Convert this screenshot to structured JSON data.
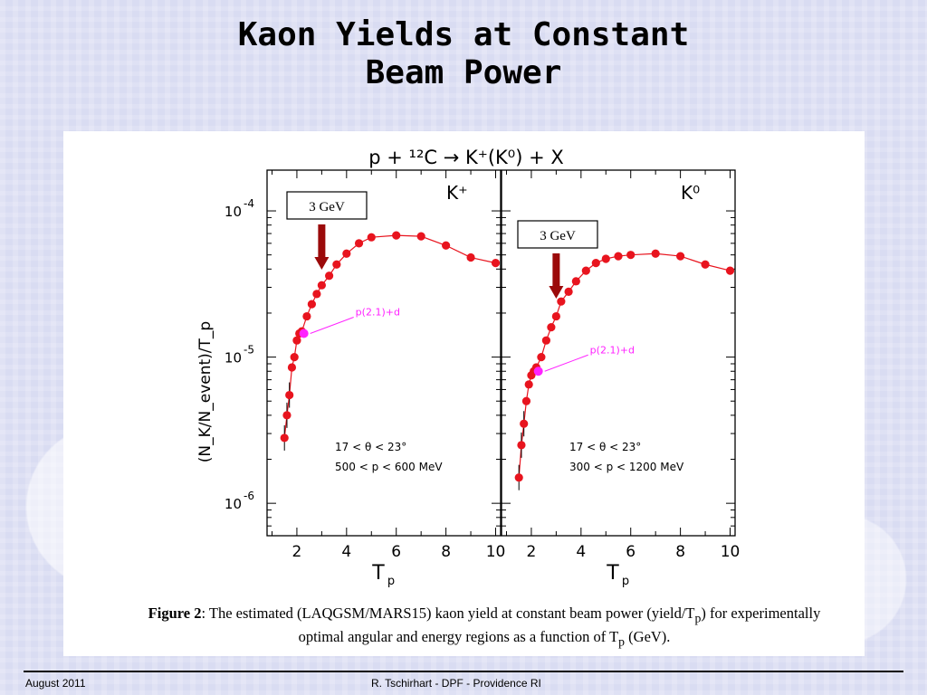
{
  "slide": {
    "title_line1": "Kaon Yields at Constant",
    "title_line2": "Beam Power",
    "footer_date": "August  2011",
    "footer_author": "R. Tschirhart -  DPF - Providence RI"
  },
  "figure": {
    "reaction": "p + ¹²C → K⁺(K⁰) + X",
    "ylabel": "(N_K/N_event)/T_p",
    "caption_bold": "Figure 2",
    "caption_rest": ": The estimated (LAQGSM/MARS15) kaon yield at constant beam power (yield/T",
    "caption_tail": ")  for experimentally optimal angular and energy regions as a function of T",
    "caption_end": " (GeV)."
  },
  "colors": {
    "data": "#e8141e",
    "annotation": "#ff22ff",
    "arrow": "#9b0a0a"
  },
  "chart_data": [
    {
      "type": "scatter",
      "panel": "K+",
      "xlabel": "T_p",
      "ylabel": "(N_K/N_event)/T_p",
      "xlim": [
        0.8,
        10.2
      ],
      "ylim": [
        6e-07,
        0.00019
      ],
      "yscale": "log",
      "x_ticks": [
        2,
        4,
        6,
        8,
        10
      ],
      "y_ticks": [
        "10^-6",
        "10^-5",
        "10^-4"
      ],
      "x": [
        1.5,
        1.6,
        1.7,
        1.8,
        1.9,
        2.0,
        2.1,
        2.2,
        2.4,
        2.6,
        2.8,
        3.0,
        3.3,
        3.6,
        4.0,
        4.5,
        5.0,
        6.0,
        7.0,
        8.0,
        9.0,
        10.0
      ],
      "y": [
        2.8e-06,
        4e-06,
        5.5e-06,
        8.5e-06,
        1e-05,
        1.3e-05,
        1.45e-05,
        1.5e-05,
        1.9e-05,
        2.3e-05,
        2.7e-05,
        3.1e-05,
        3.6e-05,
        4.3e-05,
        5.1e-05,
        6e-05,
        6.6e-05,
        6.8e-05,
        6.7e-05,
        5.8e-05,
        4.8e-05,
        4.4e-05
      ],
      "label": "K⁺",
      "marker_label": "3 GeV",
      "marker_x": 3.0,
      "annotation": "p(2.1)+d",
      "annotation_x": 2.1,
      "cut_angle": "17 < θ < 23°",
      "cut_momentum": "500 < p < 600 MeV"
    },
    {
      "type": "scatter",
      "panel": "K0",
      "xlabel": "T_p",
      "xlim": [
        0.8,
        10.2
      ],
      "ylim": [
        6e-07,
        0.00019
      ],
      "yscale": "log",
      "x_ticks": [
        2,
        4,
        6,
        8,
        10
      ],
      "x": [
        1.5,
        1.6,
        1.7,
        1.8,
        1.9,
        2.0,
        2.1,
        2.2,
        2.4,
        2.6,
        2.8,
        3.0,
        3.2,
        3.5,
        3.8,
        4.2,
        4.6,
        5.0,
        5.5,
        6.0,
        7.0,
        8.0,
        9.0,
        10.0
      ],
      "y": [
        1.5e-06,
        2.5e-06,
        3.5e-06,
        5e-06,
        6.5e-06,
        7.5e-06,
        8e-06,
        8.5e-06,
        1e-05,
        1.3e-05,
        1.6e-05,
        1.9e-05,
        2.4e-05,
        2.8e-05,
        3.3e-05,
        3.9e-05,
        4.4e-05,
        4.7e-05,
        4.9e-05,
        5e-05,
        5.1e-05,
        4.9e-05,
        4.3e-05,
        3.9e-05
      ],
      "label": "K⁰",
      "marker_label": "3 GeV",
      "marker_x": 3.0,
      "annotation": "p(2.1)+d",
      "annotation_x": 2.1,
      "cut_angle": "17 < θ < 23°",
      "cut_momentum": "300 < p < 1200 MeV"
    }
  ]
}
